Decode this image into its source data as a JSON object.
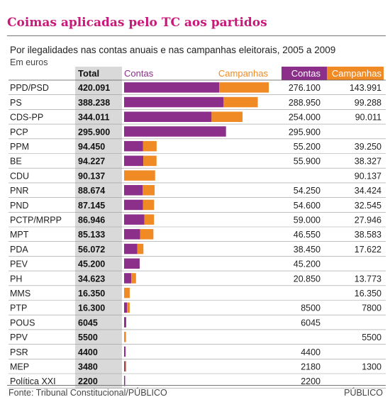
{
  "title": "Coimas aplicadas pelo TC aos partidos",
  "subtitle": "Por ilegalidades nas contas anuais e nas campanhas eleitorais, 2005 a 2009",
  "unit": "Em euros",
  "footer": {
    "source": "Fonte: Tribunal Constitucional/PÚBLICO",
    "brand": "PÚBLICO"
  },
  "colors": {
    "contas": "#8b2f8a",
    "campanhas": "#f08a24",
    "total_col": "#d9d9d9",
    "title": "#c8197a"
  },
  "chart_data": {
    "type": "bar",
    "stacked": true,
    "orientation": "horizontal",
    "headers": {
      "total": "Total",
      "legend_contas": "Contas",
      "legend_campanhas": "Campanhas",
      "col_contas": "Contas",
      "col_campanhas": "Campanhas"
    },
    "categories": [
      "PPD/PSD",
      "PS",
      "CDS-PP",
      "PCP",
      "PPM",
      "BE",
      "CDU",
      "PNR",
      "PND",
      "PCTP/MRPP",
      "MPT",
      "PDA",
      "PEV",
      "PH",
      "MMS",
      "PTP",
      "POUS",
      "PPV",
      "PSR",
      "MEP",
      "Política XXI"
    ],
    "totals_label": [
      "420.091",
      "388.238",
      "344.011",
      "295.900",
      "94.450",
      "94.227",
      "90.137",
      "88.674",
      "87.145",
      "86.946",
      "85.133",
      "56.072",
      "45.200",
      "34.623",
      "16.350",
      "16.300",
      "6045",
      "5500",
      "4400",
      "3480",
      "2200"
    ],
    "contas_label": [
      "276.100",
      "288.950",
      "254.000",
      "295.900",
      "55.200",
      "55.900",
      "",
      "54.250",
      "54.600",
      "59.000",
      "46.550",
      "38.450",
      "45.200",
      "20.850",
      "",
      "8500",
      "6045",
      "",
      "4400",
      "2180",
      "2200"
    ],
    "campanhas_label": [
      "143.991",
      "99.288",
      "90.011",
      "",
      "39.250",
      "38.327",
      "90.137",
      "34.424",
      "32.545",
      "27.946",
      "38.583",
      "17.622",
      "",
      "13.773",
      "16.350",
      "7800",
      "",
      "5500",
      "",
      "1300",
      ""
    ],
    "series": [
      {
        "name": "Contas",
        "values": [
          276100,
          288950,
          254000,
          295900,
          55200,
          55900,
          0,
          54250,
          54600,
          59000,
          46550,
          38450,
          45200,
          20850,
          0,
          8500,
          6045,
          0,
          4400,
          2180,
          2200
        ]
      },
      {
        "name": "Campanhas",
        "values": [
          143991,
          99288,
          90011,
          0,
          39250,
          38327,
          90137,
          34424,
          32545,
          27946,
          38583,
          17622,
          0,
          13773,
          16350,
          7800,
          0,
          5500,
          0,
          1300,
          0
        ]
      }
    ],
    "xlim": [
      0,
      420091
    ],
    "grid": false,
    "legend": "top"
  }
}
